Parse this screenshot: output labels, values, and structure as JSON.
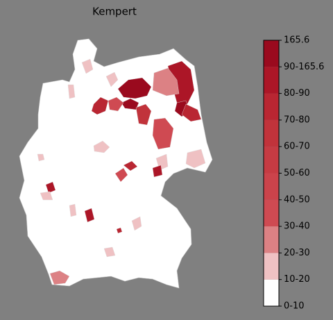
{
  "title": "Kempert",
  "colorbar": {
    "labels": [
      "0-10",
      "10-20",
      "20-30",
      "30-40",
      "40-50",
      "50-60",
      "60-70",
      "70-80",
      "80-90",
      "90-165.6",
      "165.6"
    ],
    "colors": [
      "#ffffff",
      "#efc1c3",
      "#dc8184",
      "#cf4a52",
      "#cb434b",
      "#c63b43",
      "#c1333b",
      "#b92632",
      "#ac1627",
      "#9a0a1e"
    ]
  }
}
